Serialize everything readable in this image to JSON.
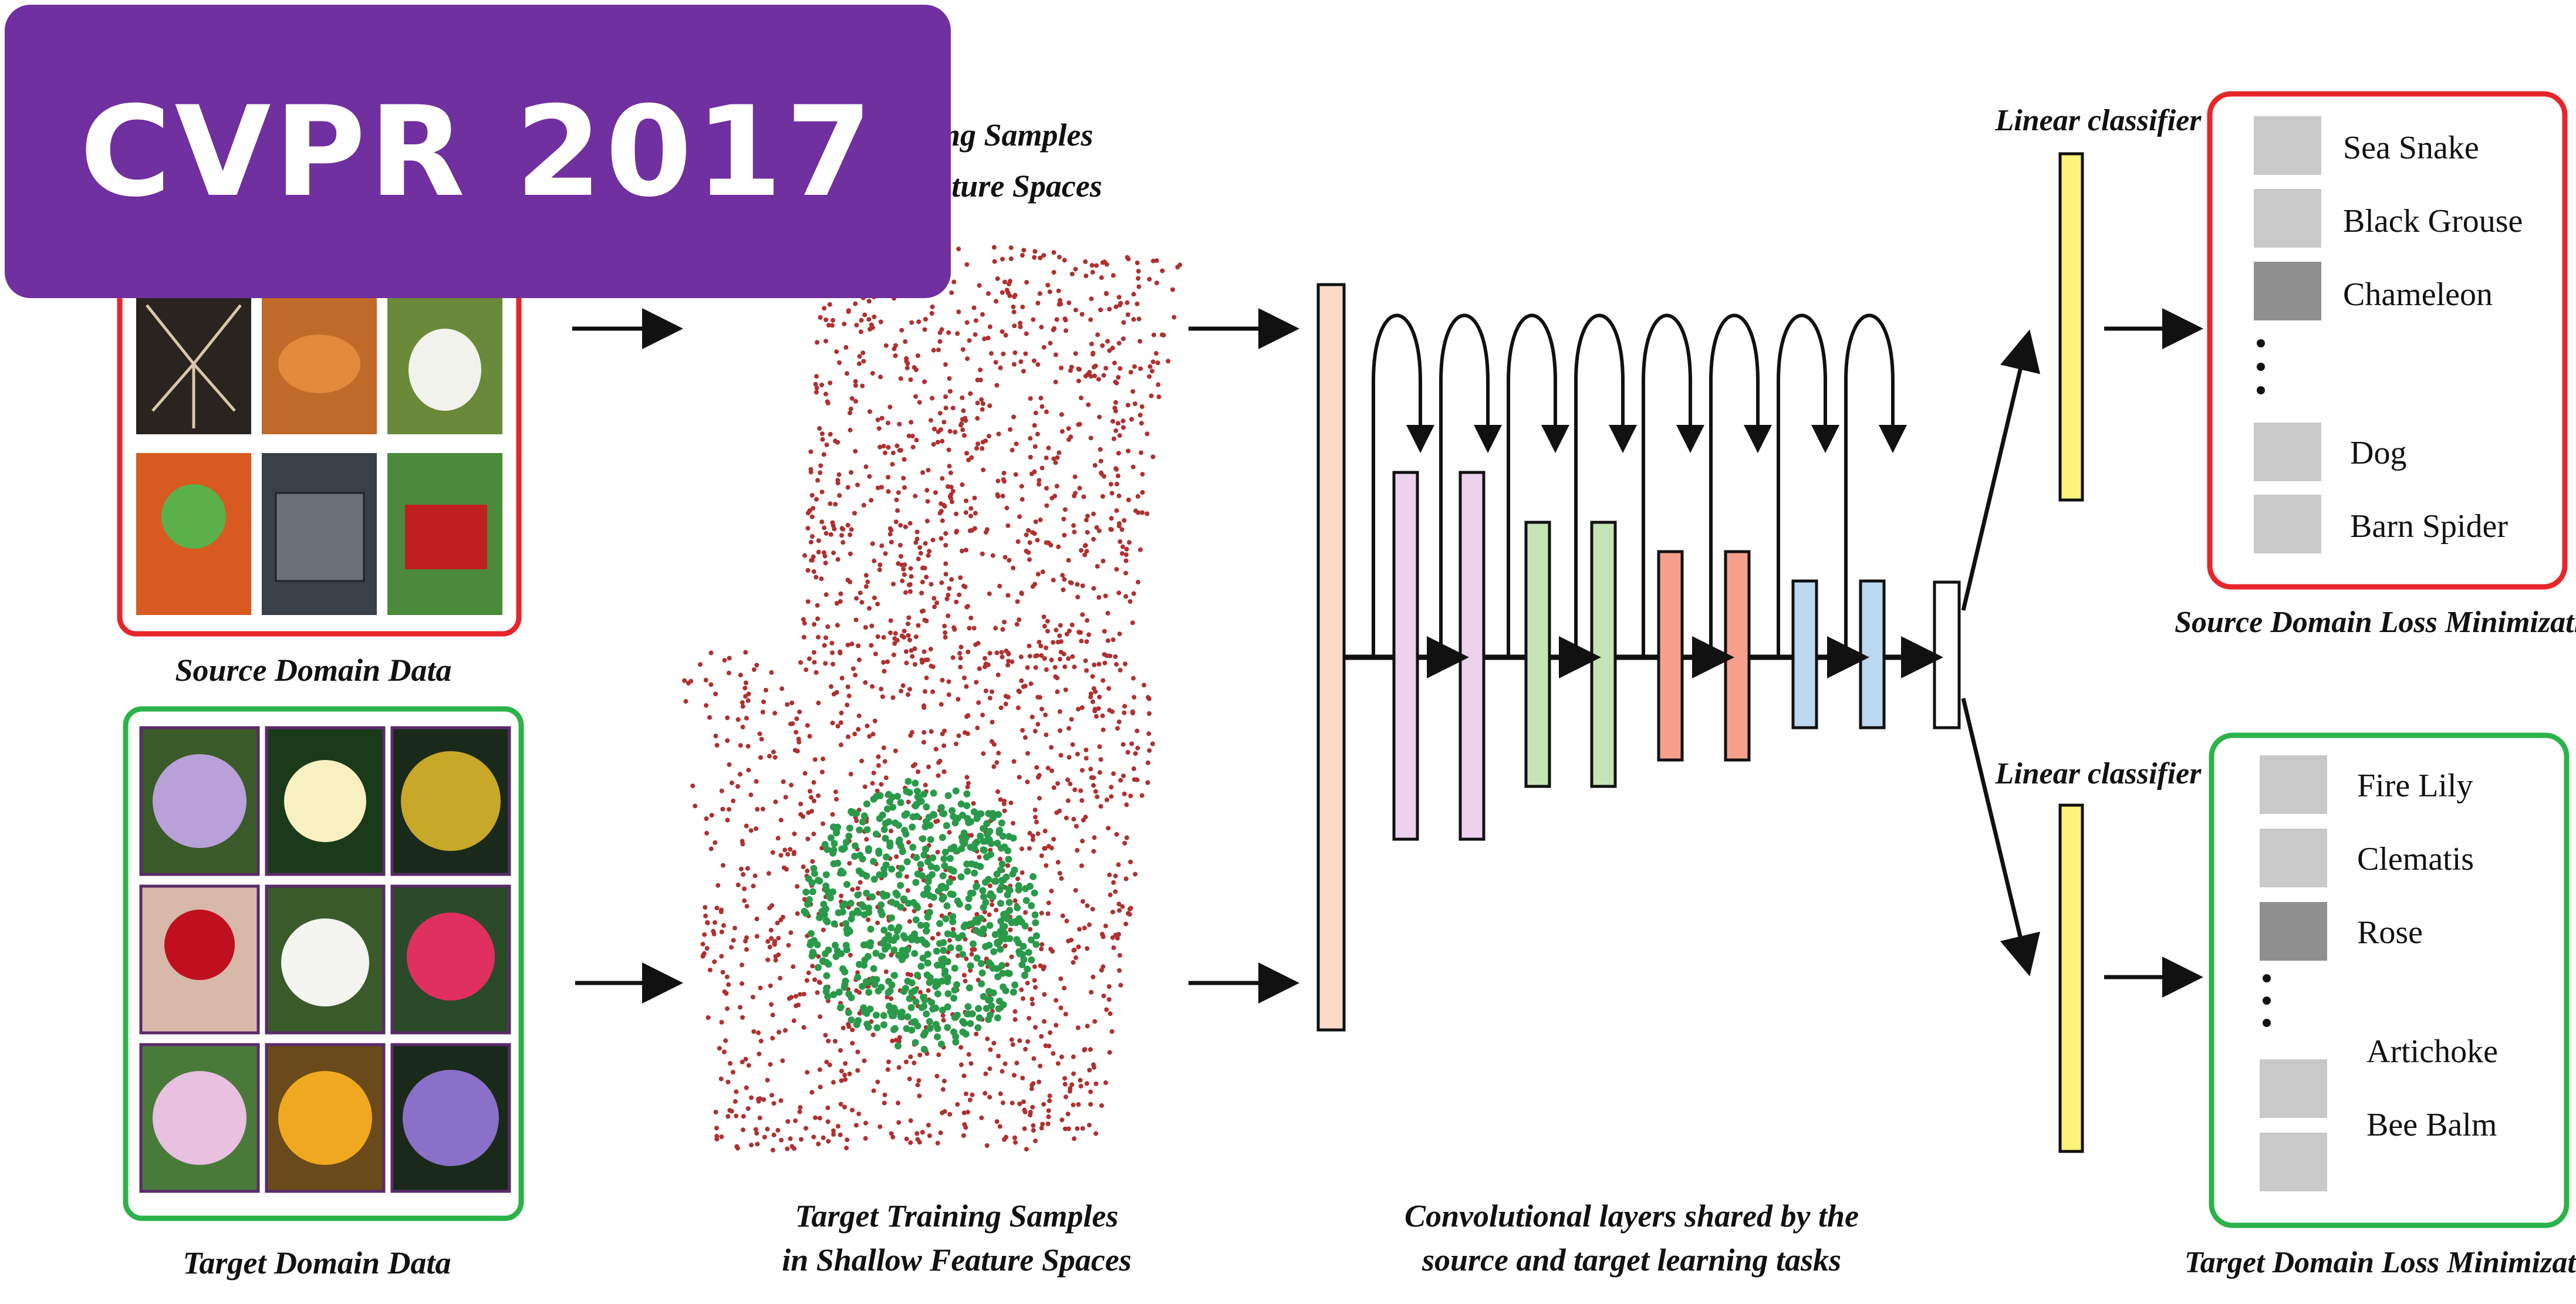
{
  "badge": {
    "text": "CVPR 2017",
    "color": "#7030a0"
  },
  "labels": {
    "source_domain_data": "Source Domain Data",
    "target_domain_data": "Target Domain Data",
    "source_samples_line1": "Source Training Samples",
    "source_samples_line2": "in Shallow Feature Spaces",
    "target_samples_line1": "Target Training Samples",
    "target_samples_line2": "in Shallow Feature Spaces",
    "conv_line1": "Convolutional layers shared by the",
    "conv_line2": "source and target learning tasks",
    "linear_classifier_top": "Linear classifier",
    "linear_classifier_bottom": "Linear classifier",
    "source_loss": "Source Domain Loss Minimization",
    "target_loss": "Target Domain Loss Minimization"
  },
  "source_classes": [
    "Sea Snake",
    "Black Grouse",
    "Chameleon",
    "Dog",
    "Barn Spider"
  ],
  "target_classes": [
    "Fire Lily",
    "Clematis",
    "Rose",
    "Artichoke",
    "Bee Balm"
  ],
  "colors": {
    "source": "#e8252b",
    "target": "#2bb34a",
    "classifier": "#fff27a",
    "input_layer": "#fbd9c7",
    "layer_pink": "#ecd2ec",
    "layer_green": "#c5e4b5",
    "layer_salmon": "#f6a08c",
    "layer_blue": "#bcd7f0",
    "source_points": "#b03030",
    "target_points": "#2a9a4a"
  },
  "icons": {
    "source_images": [
      "spider-image",
      "crab-image",
      "dog-image",
      "comic-image",
      "toolbox-image",
      "lawnmower-image"
    ],
    "target_images": [
      "passion-flower-image",
      "frangipani-image",
      "yellow-flower-image",
      "rose-image",
      "white-flower-image",
      "bee-balm-image",
      "clematis-pink-image",
      "canna-lily-image",
      "clematis-purple-image"
    ]
  }
}
